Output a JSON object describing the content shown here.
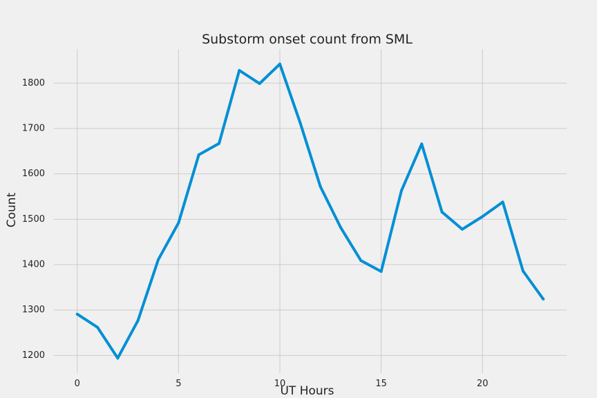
{
  "chart_data": {
    "type": "line",
    "title": "Substorm onset count from SML",
    "xlabel": "UT Hours",
    "ylabel": "Count",
    "x": [
      0,
      1,
      2,
      3,
      4,
      5,
      6,
      7,
      8,
      9,
      10,
      11,
      12,
      13,
      14,
      15,
      16,
      17,
      18,
      19,
      20,
      21,
      22,
      23
    ],
    "series": [
      {
        "values": [
          1291,
          1262,
          1194,
          1277,
          1411,
          1492,
          1642,
          1667,
          1828,
          1799,
          1842,
          1713,
          1572,
          1482,
          1409,
          1385,
          1563,
          1666,
          1516,
          1478,
          1506,
          1538,
          1386,
          1324
        ],
        "color": "#008fd5"
      }
    ],
    "xticks": [
      0,
      5,
      10,
      15,
      20
    ],
    "yticks": [
      1200,
      1300,
      1400,
      1500,
      1600,
      1700,
      1800
    ],
    "xlim": [
      -1.15,
      24.15
    ],
    "ylim": [
      1161,
      1875
    ],
    "grid": true,
    "style": "fivethirtyeight"
  }
}
